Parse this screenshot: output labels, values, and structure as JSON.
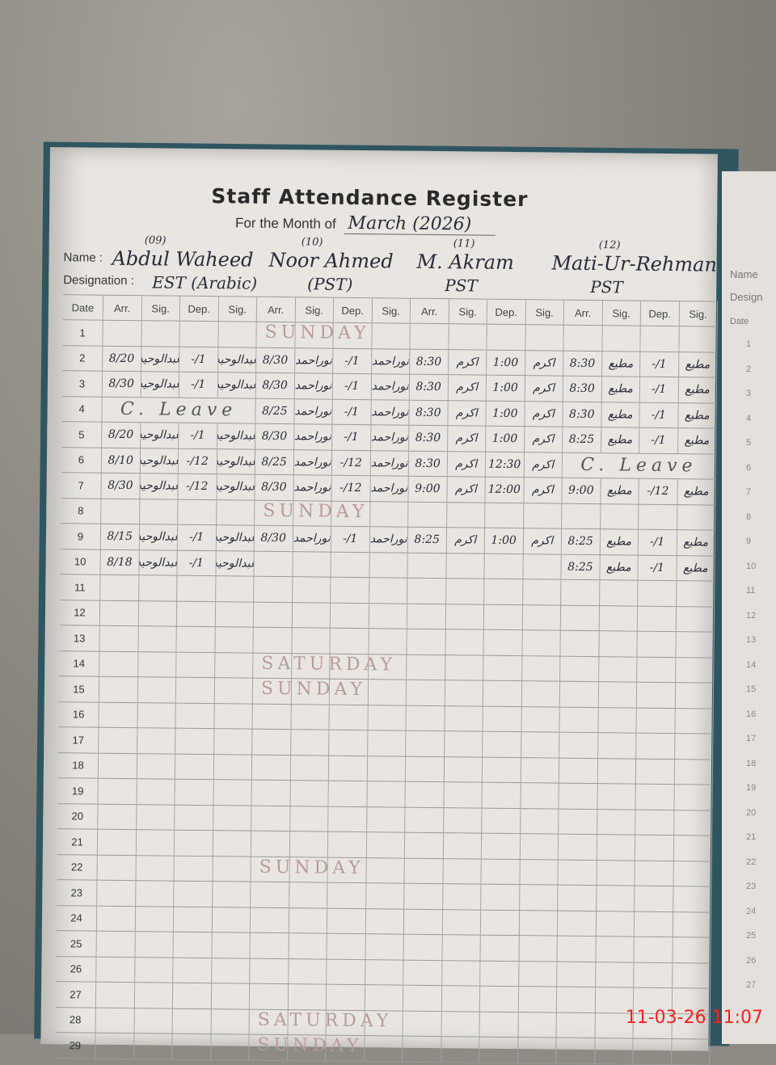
{
  "title": "Staff Attendance Register",
  "month_label": "For the Month of",
  "month_value": "March (2026)",
  "name_label": "Name :",
  "designation_label": "Designation :",
  "staff": [
    {
      "serial": "(09)",
      "name": "Abdul Waheed",
      "designation": "EST (Arabic)"
    },
    {
      "serial": "(10)",
      "name": "Noor Ahmed",
      "designation": "(PST)"
    },
    {
      "serial": "(11)",
      "name": "M. Akram",
      "designation": "PST"
    },
    {
      "serial": "(12)",
      "name": "Mati-Ur-Rehman",
      "designation": "PST"
    }
  ],
  "columns": [
    "Date",
    "Arr.",
    "Sig.",
    "Dep.",
    "Sig.",
    "Arr.",
    "Sig.",
    "Dep.",
    "Sig.",
    "Arr.",
    "Sig.",
    "Dep.",
    "Sig.",
    "Arr.",
    "Sig.",
    "Dep.",
    "Sig."
  ],
  "rows": [
    {
      "date": "1",
      "note": "SUNDAY"
    },
    {
      "date": "2",
      "staff": [
        [
          "8/20",
          "عبدالوحید",
          "-/1",
          "عبدالوحید"
        ],
        [
          "8/30",
          "نوراحمد",
          "-/1",
          "نوراحمد"
        ],
        [
          "8:30",
          "اکرم",
          "1:00",
          "اکرم"
        ],
        [
          "8:30",
          "مطیع",
          "-/1",
          "مطیع"
        ]
      ]
    },
    {
      "date": "3",
      "staff": [
        [
          "8/30",
          "عبدالوحید",
          "-/1",
          "عبدالوحید"
        ],
        [
          "8/30",
          "نوراحمد",
          "-/1",
          "نوراحمد"
        ],
        [
          "8:30",
          "اکرم",
          "1:00",
          "اکرم"
        ],
        [
          "8:30",
          "مطیع",
          "-/1",
          "مطیع"
        ]
      ]
    },
    {
      "date": "4",
      "staff": [
        "C. Leave",
        [
          "8/25",
          "نوراحمد",
          "-/1",
          "نوراحمد"
        ],
        [
          "8:30",
          "اکرم",
          "1:00",
          "اکرم"
        ],
        [
          "8:30",
          "مطیع",
          "-/1",
          "مطیع"
        ]
      ]
    },
    {
      "date": "5",
      "staff": [
        [
          "8/20",
          "عبدالوحید",
          "-/1",
          "عبدالوحید"
        ],
        [
          "8/30",
          "نوراحمد",
          "-/1",
          "نوراحمد"
        ],
        [
          "8:30",
          "اکرم",
          "1:00",
          "اکرم"
        ],
        [
          "8:25",
          "مطیع",
          "-/1",
          "مطیع"
        ]
      ]
    },
    {
      "date": "6",
      "staff": [
        [
          "8/10",
          "عبدالوحید",
          "-/12",
          "عبدالوحید"
        ],
        [
          "8/25",
          "نوراحمد",
          "-/12",
          "نوراحمد"
        ],
        [
          "8:30",
          "اکرم",
          "12:30",
          "اکرم"
        ],
        "C. Leave"
      ]
    },
    {
      "date": "7",
      "staff": [
        [
          "8/30",
          "عبدالوحید",
          "-/12",
          "عبدالوحید"
        ],
        [
          "8/30",
          "نوراحمد",
          "-/12",
          "نوراحمد"
        ],
        [
          "9:00",
          "اکرم",
          "12:00",
          "اکرم"
        ],
        [
          "9:00",
          "مطیع",
          "-/12",
          "مطیع"
        ]
      ]
    },
    {
      "date": "8",
      "note": "SUNDAY"
    },
    {
      "date": "9",
      "staff": [
        [
          "8/15",
          "عبدالوحید",
          "-/1",
          "عبدالوحید"
        ],
        [
          "8/30",
          "نوراحمد",
          "-/1",
          "نوراحمد"
        ],
        [
          "8:25",
          "اکرم",
          "1:00",
          "اکرم"
        ],
        [
          "8:25",
          "مطیع",
          "-/1",
          "مطیع"
        ]
      ]
    },
    {
      "date": "10",
      "staff": [
        [
          "8/18",
          "عبدالوحید",
          "-/1",
          "عبدالوحید"
        ],
        [
          "",
          "",
          "",
          ""
        ],
        [
          "",
          "",
          "",
          ""
        ],
        [
          "8:25",
          "مطیع",
          "-/1",
          "مطیع"
        ]
      ]
    },
    {
      "date": "11"
    },
    {
      "date": "12"
    },
    {
      "date": "13"
    },
    {
      "date": "14",
      "note": "SATURDAY"
    },
    {
      "date": "15",
      "note": "SUNDAY"
    },
    {
      "date": "16"
    },
    {
      "date": "17"
    },
    {
      "date": "18"
    },
    {
      "date": "19"
    },
    {
      "date": "20"
    },
    {
      "date": "21"
    },
    {
      "date": "22",
      "note": "SUNDAY"
    },
    {
      "date": "23"
    },
    {
      "date": "24"
    },
    {
      "date": "25"
    },
    {
      "date": "26"
    },
    {
      "date": "27"
    },
    {
      "date": "28",
      "note": "SATURDAY"
    },
    {
      "date": "29",
      "note": "SUNDAY"
    }
  ],
  "next_page": {
    "name_label": "Name",
    "designation_label": "Design",
    "date_label": "Date",
    "dates": [
      "1",
      "2",
      "3",
      "4",
      "5",
      "6",
      "7",
      "8",
      "9",
      "10",
      "11",
      "12",
      "13",
      "14",
      "15",
      "16",
      "17",
      "18",
      "19",
      "20",
      "21",
      "22",
      "23",
      "24",
      "25",
      "26",
      "27"
    ]
  },
  "timestamp": "11-03-26  11:07",
  "colors": {
    "ink": "#2b2b3a",
    "paper": "#e9e6e1",
    "note": "#b89a9a",
    "timestamp": "#ff2020"
  }
}
